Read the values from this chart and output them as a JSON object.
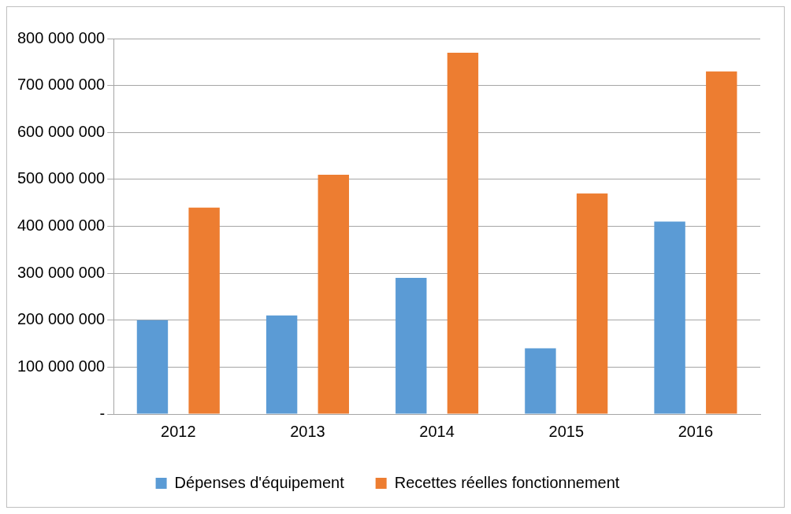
{
  "chart_data": {
    "type": "bar",
    "categories": [
      "2012",
      "2013",
      "2014",
      "2015",
      "2016"
    ],
    "series": [
      {
        "name": "Dépenses d'équipement",
        "color": "#5b9bd5",
        "values": [
          200000000,
          210000000,
          290000000,
          140000000,
          410000000
        ]
      },
      {
        "name": "Recettes réelles fonctionnement",
        "color": "#ed7d31",
        "values": [
          440000000,
          510000000,
          770000000,
          470000000,
          730000000
        ]
      }
    ],
    "ylim": [
      0,
      800000000
    ],
    "yticks": [
      {
        "value": 0,
        "label": "-"
      },
      {
        "value": 100000000,
        "label": "100 000 000"
      },
      {
        "value": 200000000,
        "label": "200 000 000"
      },
      {
        "value": 300000000,
        "label": "300 000 000"
      },
      {
        "value": 400000000,
        "label": "400 000 000"
      },
      {
        "value": 500000000,
        "label": "500 000 000"
      },
      {
        "value": 600000000,
        "label": "600 000 000"
      },
      {
        "value": 700000000,
        "label": "700 000 000"
      },
      {
        "value": 800000000,
        "label": "800 000 000"
      }
    ],
    "grid": "y",
    "legend": "bottom"
  }
}
